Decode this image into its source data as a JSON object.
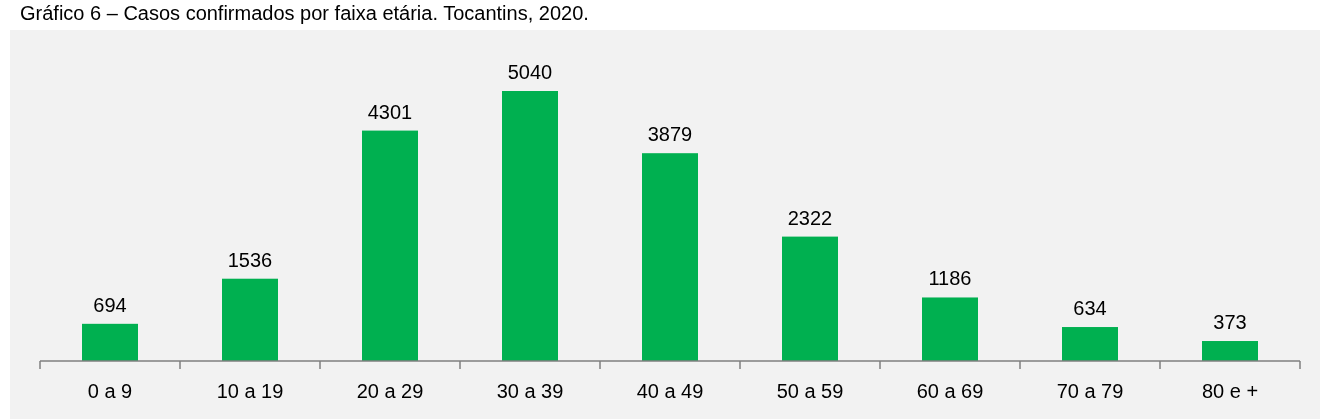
{
  "chart_data": {
    "type": "bar",
    "title": "Gráfico 6 – Casos confirmados por faixa etária. Tocantins, 2020.",
    "categories": [
      "0 a 9",
      "10 a 19",
      "20 a 29",
      "30 a 39",
      "40 a 49",
      "50 a 59",
      "60 a 69",
      "70 a 79",
      "80 e +"
    ],
    "values": [
      694,
      1536,
      4301,
      5040,
      3879,
      2322,
      1186,
      634,
      373
    ],
    "color": "#00b050",
    "data_labels": true
  }
}
